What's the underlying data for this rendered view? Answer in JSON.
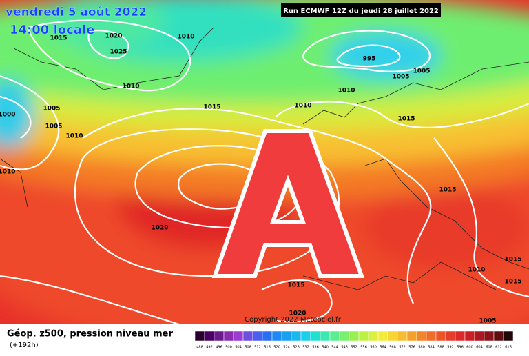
{
  "header": {
    "date": "vendredi 5 août 2022",
    "time": "14:00 locale",
    "run": "Run ECMWF 12Z du jeudi 28 juillet 2022"
  },
  "isobar_labels": [
    "1015",
    "1020",
    "1025",
    "1010",
    "995",
    "1005",
    "1005",
    "1010",
    "1010",
    "1015",
    "1010",
    "1000",
    "1005",
    "1005",
    "1010",
    "1015",
    "1010",
    "1015",
    "1020",
    "1010",
    "1015",
    "1015",
    "1015",
    "1020",
    "1005"
  ],
  "copyright": "Copyright 2022 Meteociel.fr",
  "legend": {
    "title": "Géop. z500, pression niveau mer",
    "subtitle": "(+192h)",
    "scale": [
      488,
      492,
      496,
      500,
      504,
      508,
      512,
      516,
      520,
      524,
      528,
      532,
      536,
      540,
      544,
      548,
      552,
      556,
      560,
      564,
      568,
      572,
      576,
      580,
      584,
      588,
      592,
      596,
      600,
      604,
      608,
      612,
      616
    ],
    "colors": [
      "#2a0030",
      "#4b0066",
      "#6a1a8a",
      "#8a2cb0",
      "#9a3cd0",
      "#6f4fe0",
      "#4a5ff0",
      "#2a6ef5",
      "#1e88f5",
      "#1aa0f0",
      "#19b8ee",
      "#1ad0e8",
      "#22e0d0",
      "#3de8b0",
      "#5aee90",
      "#7af070",
      "#9af050",
      "#bef040",
      "#dcf040",
      "#f4ec3a",
      "#f8d434",
      "#f8bc30",
      "#f6a02c",
      "#f38428",
      "#f06c28",
      "#ec5428",
      "#e63c2a",
      "#dc2a2a",
      "#c81e24",
      "#aa1820",
      "#8a141a",
      "#5c0e10",
      "#200808"
    ]
  }
}
